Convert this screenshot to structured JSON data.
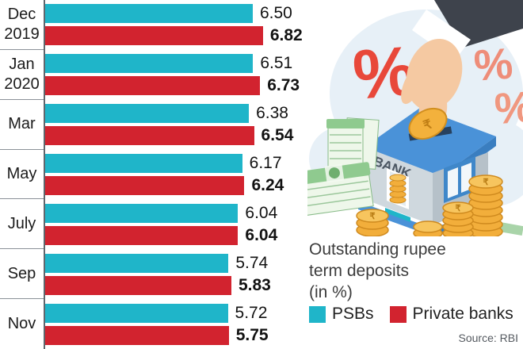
{
  "chart_data": {
    "type": "bar",
    "orientation": "horizontal",
    "title": "Outstanding rupee term deposits (in %)",
    "categories": [
      [
        "Dec",
        "2019"
      ],
      [
        "Jan",
        "2020"
      ],
      [
        "Mar"
      ],
      [
        "May"
      ],
      [
        "July"
      ],
      [
        "Sep"
      ],
      [
        "Nov"
      ]
    ],
    "series": [
      {
        "name": "PSBs",
        "color": "#1fb5c9",
        "values": [
          "6.50",
          "6.51",
          "6.38",
          "6.17",
          "6.04",
          "5.74",
          "5.72"
        ]
      },
      {
        "name": "Private banks",
        "color": "#d2232f",
        "values": [
          "6.82",
          "6.73",
          "6.54",
          "6.24",
          "6.04",
          "5.83",
          "5.75"
        ]
      }
    ],
    "xlim": [
      0,
      6.82
    ],
    "value_labels": true,
    "grid": false,
    "legend_position": "bottom-right"
  },
  "title": {
    "line1": "Outstanding rupee",
    "line2": "term deposits",
    "line3": "(in %)"
  },
  "legend": {
    "psb_label": "PSBs",
    "private_label": "Private banks"
  },
  "source": "Source: RBI",
  "illustration": {
    "bank_sign": "BANK",
    "percent_large": "%",
    "percent_small_1": "%",
    "percent_small_2": "%",
    "coin_symbol": "₹"
  },
  "colors": {
    "psb": "#1fb5c9",
    "private": "#d2232f",
    "percent_red": "#e8483a",
    "percent_salmon": "#ef8e79",
    "cloud": "#e7f0f7",
    "coin_gold": "#f2ae3b",
    "money_green": "#8fca8f",
    "roof_blue": "#4a92d8"
  }
}
